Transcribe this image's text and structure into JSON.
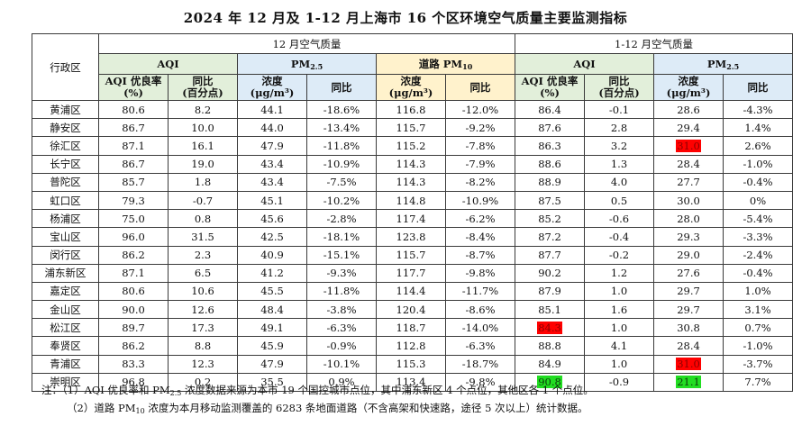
{
  "title": "2024 年 12 月及 1-12 月上海市 16 个区环境空气质量主要监测指标",
  "header": {
    "district": "行政区",
    "dec_group": "12 月空气质量",
    "ytd_group": "1-12 月空气质量",
    "aqi": "AQI",
    "pm25_main": "PM",
    "pm25_sub": "2.5",
    "road_main": "道路 PM",
    "road_sub": "10",
    "aqi_rate_l1": "AQI 优良率",
    "aqi_rate_l2": "(%)",
    "yoy_l1": "同比",
    "yoy_l2": "(百分点)",
    "conc_l1": "浓度",
    "conc_l2": "(μg/m³)",
    "yoy": "同比"
  },
  "rows": [
    {
      "name": "黄浦区",
      "d_aqi": "80.6",
      "d_aqi_yoy": "8.2",
      "d_pm": "44.1",
      "d_pm_yoy": "-18.6%",
      "d_road": "116.8",
      "d_road_yoy": "-12.0%",
      "y_aqi": "86.4",
      "y_aqi_yoy": "-0.1",
      "y_pm": "28.6",
      "y_pm_yoy": "-4.3%"
    },
    {
      "name": "静安区",
      "d_aqi": "86.7",
      "d_aqi_yoy": "10.0",
      "d_pm": "44.0",
      "d_pm_yoy": "-13.4%",
      "d_road": "115.7",
      "d_road_yoy": "-9.2%",
      "y_aqi": "87.6",
      "y_aqi_yoy": "2.8",
      "y_pm": "29.4",
      "y_pm_yoy": "1.4%"
    },
    {
      "name": "徐汇区",
      "d_aqi": "87.1",
      "d_aqi_yoy": "16.1",
      "d_pm": "47.9",
      "d_pm_yoy": "-11.8%",
      "d_road": "115.2",
      "d_road_yoy": "-7.8%",
      "y_aqi": "86.3",
      "y_aqi_yoy": "3.2",
      "y_pm": "31.0",
      "y_pm_yoy": "2.6%",
      "y_pm_hl": "red"
    },
    {
      "name": "长宁区",
      "d_aqi": "86.7",
      "d_aqi_yoy": "19.0",
      "d_pm": "43.4",
      "d_pm_yoy": "-10.9%",
      "d_road": "114.3",
      "d_road_yoy": "-7.9%",
      "y_aqi": "88.6",
      "y_aqi_yoy": "1.3",
      "y_pm": "28.4",
      "y_pm_yoy": "-1.0%"
    },
    {
      "name": "普陀区",
      "d_aqi": "85.7",
      "d_aqi_yoy": "1.8",
      "d_pm": "43.4",
      "d_pm_yoy": "-7.5%",
      "d_road": "114.3",
      "d_road_yoy": "-8.2%",
      "y_aqi": "88.9",
      "y_aqi_yoy": "4.0",
      "y_pm": "27.7",
      "y_pm_yoy": "-0.4%"
    },
    {
      "name": "虹口区",
      "d_aqi": "79.3",
      "d_aqi_yoy": "-0.7",
      "d_pm": "45.1",
      "d_pm_yoy": "-10.2%",
      "d_road": "114.8",
      "d_road_yoy": "-10.9%",
      "y_aqi": "87.5",
      "y_aqi_yoy": "0.5",
      "y_pm": "30.0",
      "y_pm_yoy": "0%"
    },
    {
      "name": "杨浦区",
      "d_aqi": "75.0",
      "d_aqi_yoy": "0.8",
      "d_pm": "45.6",
      "d_pm_yoy": "-2.8%",
      "d_road": "117.4",
      "d_road_yoy": "-6.2%",
      "y_aqi": "85.2",
      "y_aqi_yoy": "-0.6",
      "y_pm": "28.0",
      "y_pm_yoy": "-5.4%"
    },
    {
      "name": "宝山区",
      "d_aqi": "96.0",
      "d_aqi_yoy": "31.5",
      "d_pm": "42.5",
      "d_pm_yoy": "-18.1%",
      "d_road": "123.8",
      "d_road_yoy": "-8.4%",
      "y_aqi": "87.2",
      "y_aqi_yoy": "-0.4",
      "y_pm": "29.3",
      "y_pm_yoy": "-3.3%"
    },
    {
      "name": "闵行区",
      "d_aqi": "86.2",
      "d_aqi_yoy": "2.3",
      "d_pm": "40.9",
      "d_pm_yoy": "-15.1%",
      "d_road": "115.7",
      "d_road_yoy": "-8.7%",
      "y_aqi": "87.7",
      "y_aqi_yoy": "-0.2",
      "y_pm": "29.0",
      "y_pm_yoy": "-2.4%"
    },
    {
      "name": "浦东新区",
      "d_aqi": "87.1",
      "d_aqi_yoy": "6.5",
      "d_pm": "41.2",
      "d_pm_yoy": "-9.3%",
      "d_road": "117.7",
      "d_road_yoy": "-9.8%",
      "y_aqi": "90.2",
      "y_aqi_yoy": "1.2",
      "y_pm": "27.6",
      "y_pm_yoy": "-0.4%"
    },
    {
      "name": "嘉定区",
      "d_aqi": "80.6",
      "d_aqi_yoy": "10.6",
      "d_pm": "45.5",
      "d_pm_yoy": "-11.8%",
      "d_road": "114.4",
      "d_road_yoy": "-11.7%",
      "y_aqi": "87.9",
      "y_aqi_yoy": "1.0",
      "y_pm": "29.7",
      "y_pm_yoy": "1.0%"
    },
    {
      "name": "金山区",
      "d_aqi": "90.0",
      "d_aqi_yoy": "12.6",
      "d_pm": "48.4",
      "d_pm_yoy": "-3.8%",
      "d_road": "120.4",
      "d_road_yoy": "-8.6%",
      "y_aqi": "85.1",
      "y_aqi_yoy": "1.6",
      "y_pm": "29.7",
      "y_pm_yoy": "3.1%"
    },
    {
      "name": "松江区",
      "d_aqi": "89.7",
      "d_aqi_yoy": "17.3",
      "d_pm": "49.1",
      "d_pm_yoy": "-6.3%",
      "d_road": "118.7",
      "d_road_yoy": "-14.0%",
      "y_aqi": "84.3",
      "y_aqi_yoy": "1.0",
      "y_pm": "30.8",
      "y_pm_yoy": "0.7%",
      "y_aqi_hl": "red"
    },
    {
      "name": "奉贤区",
      "d_aqi": "86.2",
      "d_aqi_yoy": "8.8",
      "d_pm": "45.9",
      "d_pm_yoy": "-0.9%",
      "d_road": "112.8",
      "d_road_yoy": "-6.3%",
      "y_aqi": "88.8",
      "y_aqi_yoy": "4.1",
      "y_pm": "28.4",
      "y_pm_yoy": "-1.0%"
    },
    {
      "name": "青浦区",
      "d_aqi": "83.3",
      "d_aqi_yoy": "12.3",
      "d_pm": "47.9",
      "d_pm_yoy": "-10.1%",
      "d_road": "115.3",
      "d_road_yoy": "-18.7%",
      "y_aqi": "84.9",
      "y_aqi_yoy": "1.0",
      "y_pm": "31.0",
      "y_pm_yoy": "-3.7%",
      "y_pm_hl": "red"
    },
    {
      "name": "崇明区",
      "d_aqi": "96.8",
      "d_aqi_yoy": "0.2",
      "d_pm": "35.5",
      "d_pm_yoy": "0.9%",
      "d_road": "113.4",
      "d_road_yoy": "-9.8%",
      "y_aqi": "90.8",
      "y_aqi_yoy": "-0.9",
      "y_pm": "21.1",
      "y_pm_yoy": "7.7%",
      "y_aqi_hl": "green",
      "y_pm_hl": "green"
    }
  ],
  "notes": {
    "n1_a": "注：（1）AQI 优良率和 PM",
    "n1_sub": "2.5",
    "n1_b": " 浓度数据来源为本市 19 个国控城市点位，其中浦东新区 4 个点位，其他区各 1 个点位。",
    "n2_a": "（2）道路 PM",
    "n2_sub": "10",
    "n2_b": " 浓度为本月移动监测覆盖的 6283 条地面道路（不含高架和快速路，途径 5 次以上）统计数据。"
  }
}
